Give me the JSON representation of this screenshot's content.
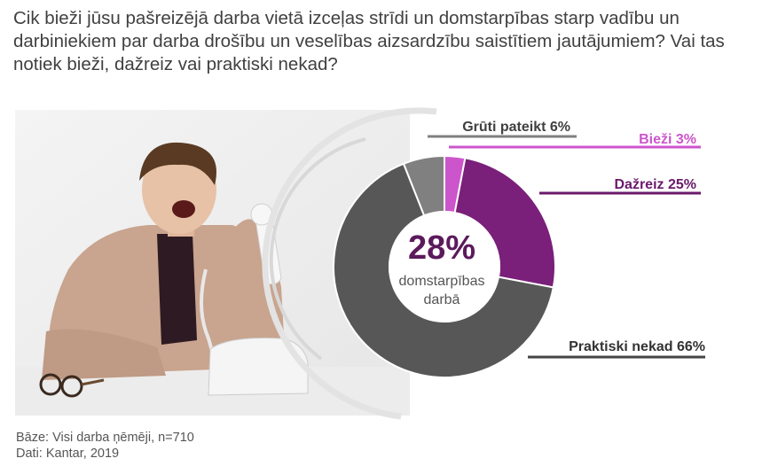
{
  "question": "Cik bieži jūsu pašreizējā darba vietā izceļas strīdi un domstarpības starp vadību un darbiniekiem par darba drošību un veselības aizsardzību saistītiem jautājumiem? Vai tas notiek bieži, dažreiz vai praktiski nekad?",
  "center": {
    "value": "28%",
    "line1": "domstarpības",
    "line2": "darbā"
  },
  "chart_data": {
    "type": "pie",
    "donut": true,
    "start_angle_deg": 0,
    "direction": "clockwise",
    "slices": [
      {
        "label": "Bieži",
        "value": 3,
        "text": "Bieži 3%",
        "color": "#cc55cc",
        "label_color": "#cc55cc"
      },
      {
        "label": "Dažreiz",
        "value": 25,
        "text": "Dažreiz 25%",
        "color": "#7a1f7a",
        "label_color": "#6a1a6a"
      },
      {
        "label": "Praktiski nekad",
        "value": 66,
        "text": "Praktiski nekad 66%",
        "color": "#575757",
        "label_color": "#333333"
      },
      {
        "label": "Grūti pateikt",
        "value": 6,
        "text": "Grūti pateikt 6%",
        "color": "#808080",
        "label_color": "#404040"
      }
    ]
  },
  "footer": {
    "base": "Bāze: Visi darba ņēmēji, n=710",
    "source": "Dati: Kantar, 2019"
  },
  "photo": {
    "subject": "man shouting into telephone receiver"
  }
}
